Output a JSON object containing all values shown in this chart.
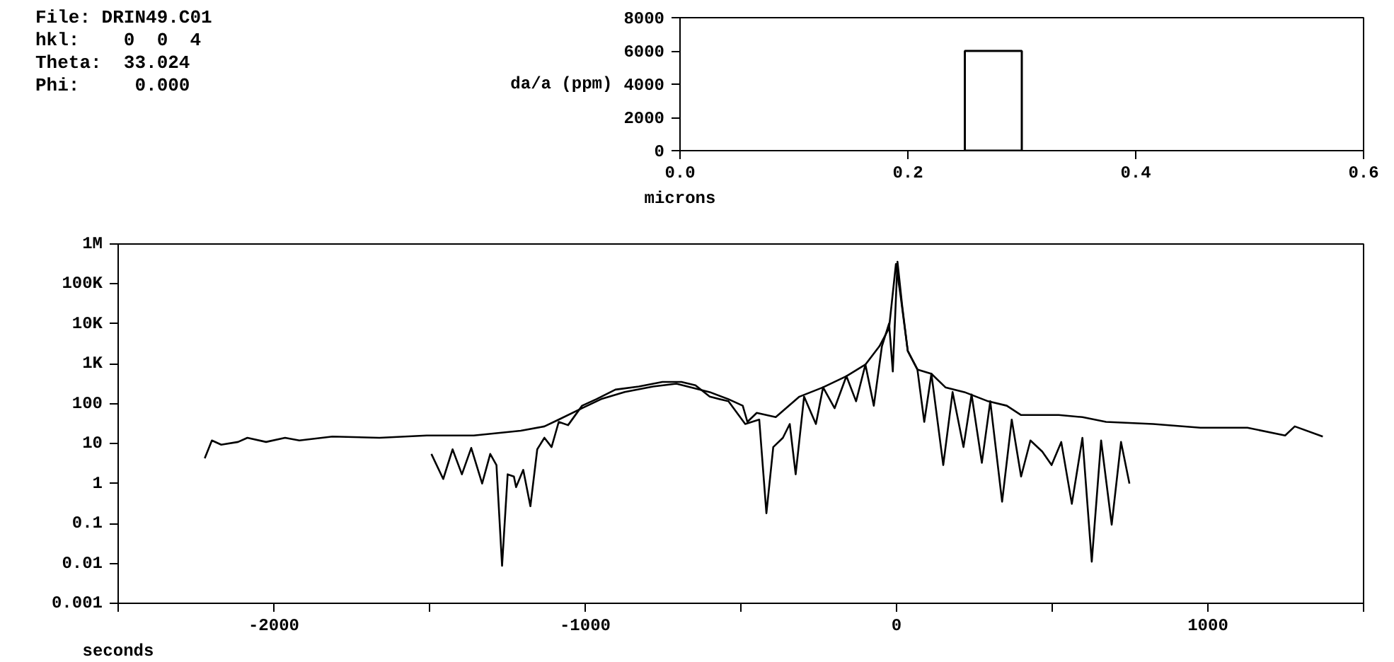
{
  "chart_data": [
    {
      "type": "histogram",
      "xlabel": "microns",
      "ylabel": "da/a (ppm)",
      "annotations": [
        "File: DRIN49.C01",
        "hkl:    0  0  4",
        "Theta:  33.024",
        "Phi:     0.000"
      ],
      "bins": [
        0.25,
        0.3
      ],
      "values": [
        6000
      ],
      "color": "#000000",
      "xlim": [
        0,
        0.6
      ],
      "xticks": [
        {
          "value": 0,
          "label": "0.0"
        },
        0.2,
        0.4,
        0.6
      ],
      "ylim": [
        0,
        8000
      ],
      "yticks": [
        0,
        2000,
        4000,
        6000,
        8000
      ]
    },
    {
      "type": "line",
      "xlabel": "seconds",
      "log": "y",
      "xlim": [
        -2500,
        1500
      ],
      "xticks": [
        {
          "value": -2500,
          "label": null
        },
        -2000,
        {
          "value": -1500,
          "label": null
        },
        -1000,
        {
          "value": -500,
          "label": null
        },
        0,
        {
          "value": 500,
          "label": null
        },
        1000,
        {
          "value": 1500,
          "label": null
        }
      ],
      "ylim": [
        0.001,
        1000000
      ],
      "yticks": [
        0.001,
        0.01,
        0.1,
        1,
        10,
        100,
        {
          "value": 1000,
          "label": "1K"
        },
        {
          "value": 10000,
          "label": "10K"
        },
        {
          "value": 100000,
          "label": "100K"
        },
        {
          "value": 1000000,
          "label": "1M"
        }
      ],
      "series": [
        {
          "color": "#000000",
          "x": [
            -2222,
            -2199,
            -2169,
            -2115,
            -2085,
            -2025,
            -1964,
            -1918,
            -1812,
            -1661,
            -1509,
            -1358,
            -1207,
            -1131,
            -1085,
            -1010,
            -949,
            -873,
            -782,
            -707,
            -631,
            -600,
            -540,
            -494,
            -479,
            -449,
            -388,
            -312,
            -236,
            -161,
            -100,
            -55,
            -24,
            -2,
            13,
            36,
            67,
            112,
            157,
            218,
            294,
            354,
            400,
            521,
            597,
            673,
            824,
            976,
            1127,
            1248,
            1279,
            1369
          ],
          "values": [
            4.3,
            12,
            9.4,
            11,
            14,
            11,
            14,
            12,
            15,
            14,
            16,
            16,
            21,
            27,
            40,
            77,
            130,
            196,
            270,
            316,
            225,
            195,
            130,
            89,
            35,
            59,
            46,
            150,
            257,
            490,
            955,
            2750,
            7800,
            316000,
            50000,
            2100,
            720,
            560,
            257,
            195,
            115,
            89,
            52,
            52,
            46,
            35,
            31,
            25,
            25,
            16,
            27,
            15
          ]
        },
        {
          "color": "#000000",
          "x": [
            -1494,
            -1456,
            -1426,
            -1396,
            -1366,
            -1331,
            -1305,
            -1285,
            -1267,
            -1249,
            -1229,
            -1222,
            -1199,
            -1176,
            -1154,
            -1131,
            -1108,
            -1085,
            -1055,
            -1010,
            -964,
            -903,
            -828,
            -752,
            -691,
            -646,
            -600,
            -540,
            -486,
            -441,
            -418,
            -396,
            -365,
            -343,
            -324,
            -297,
            -259,
            -236,
            -199,
            -161,
            -130,
            -100,
            -73,
            -47,
            -24,
            -12,
            3,
            18,
            36,
            67,
            89,
            112,
            150,
            180,
            215,
            241,
            274,
            301,
            339,
            370,
            400,
            430,
            468,
            498,
            529,
            563,
            597,
            627,
            657,
            691,
            721,
            748
          ],
          "values": [
            5.5,
            1.3,
            7.2,
            1.7,
            7.8,
            1.0,
            5.5,
            2.9,
            0.0087,
            1.7,
            1.5,
            0.81,
            2.2,
            0.27,
            7.2,
            14,
            8.2,
            35,
            29,
            89,
            130,
            225,
            270,
            350,
            350,
            290,
            150,
            115,
            31,
            40,
            0.18,
            8.2,
            14,
            31,
            1.7,
            150,
            31,
            257,
            77,
            490,
            115,
            955,
            89,
            2750,
            10200,
            640,
            360000,
            29000,
            2100,
            720,
            35,
            560,
            2.9,
            195,
            8.2,
            170,
            3.3,
            115,
            0.35,
            40,
            1.5,
            12,
            6.3,
            2.9,
            11,
            0.31,
            14,
            0.011,
            12,
            0.093,
            11,
            1.0
          ]
        }
      ]
    }
  ]
}
